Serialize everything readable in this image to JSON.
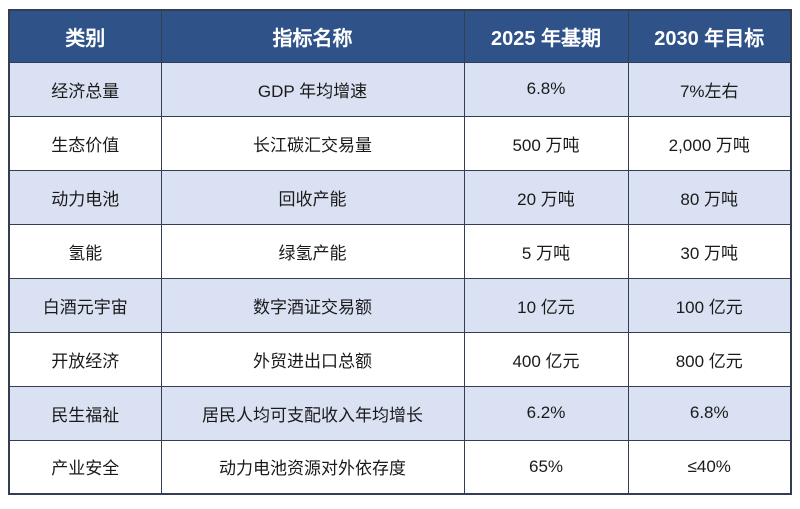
{
  "table": {
    "headers": [
      "类别",
      "指标名称",
      "2025 年基期",
      "2030 年目标"
    ],
    "rows": [
      {
        "category": "经济总量",
        "indicator": "GDP 年均增速",
        "base_2025": "6.8%",
        "target_2030": "7%左右"
      },
      {
        "category": "生态价值",
        "indicator": "长江碳汇交易量",
        "base_2025": "500 万吨",
        "target_2030": "2,000 万吨"
      },
      {
        "category": "动力电池",
        "indicator": "回收产能",
        "base_2025": "20 万吨",
        "target_2030": "80 万吨"
      },
      {
        "category": "氢能",
        "indicator": "绿氢产能",
        "base_2025": "5 万吨",
        "target_2030": "30 万吨"
      },
      {
        "category": "白酒元宇宙",
        "indicator": "数字酒证交易额",
        "base_2025": "10 亿元",
        "target_2030": "100 亿元"
      },
      {
        "category": "开放经济",
        "indicator": "外贸进出口总额",
        "base_2025": "400 亿元",
        "target_2030": "800 亿元"
      },
      {
        "category": "民生福祉",
        "indicator": "居民人均可支配收入年均增长",
        "base_2025": "6.2%",
        "target_2030": "6.8%"
      },
      {
        "category": "产业安全",
        "indicator": "动力电池资源对外依存度",
        "base_2025": "65%",
        "target_2030": "≤40%"
      }
    ]
  },
  "colors": {
    "header_bg": "#2f5389",
    "header_text": "#ffffff",
    "row_alt_bg": "#d9e1f2",
    "row_bg": "#ffffff",
    "border": "#333e52",
    "body_text": "#1a1a1a"
  }
}
